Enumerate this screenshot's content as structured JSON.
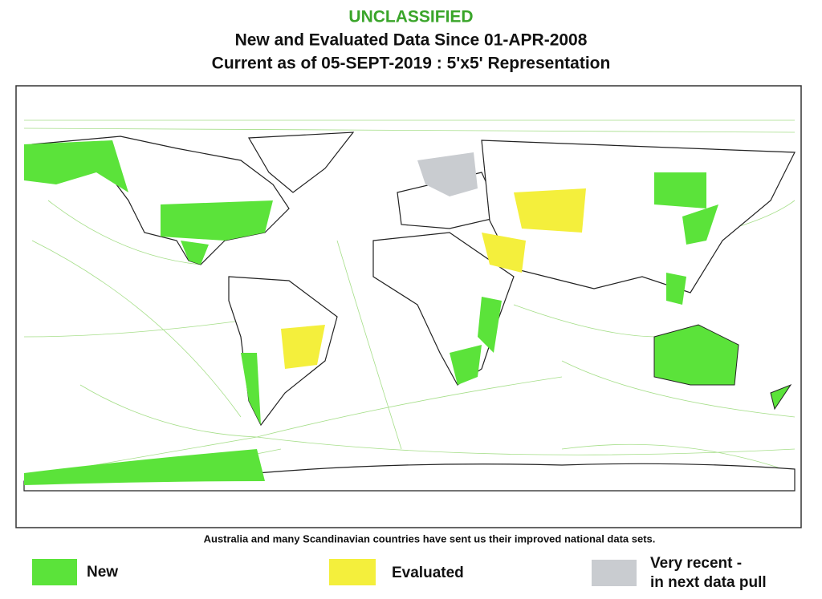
{
  "header": {
    "classification": "UNCLASSIFIED",
    "title_lines": [
      "New and Evaluated Data Since 01-APR-2008",
      "Current as of 05-SEPT-2019 : 5'x5' Representation"
    ]
  },
  "caption": "Australia and many Scandinavian countries have sent us their improved national data sets.",
  "legend": [
    {
      "label_lines": [
        "New"
      ]
    },
    {
      "label_lines": [
        "Evaluated"
      ]
    },
    {
      "label_lines": [
        "Very recent -",
        "in next data pull"
      ]
    }
  ]
}
